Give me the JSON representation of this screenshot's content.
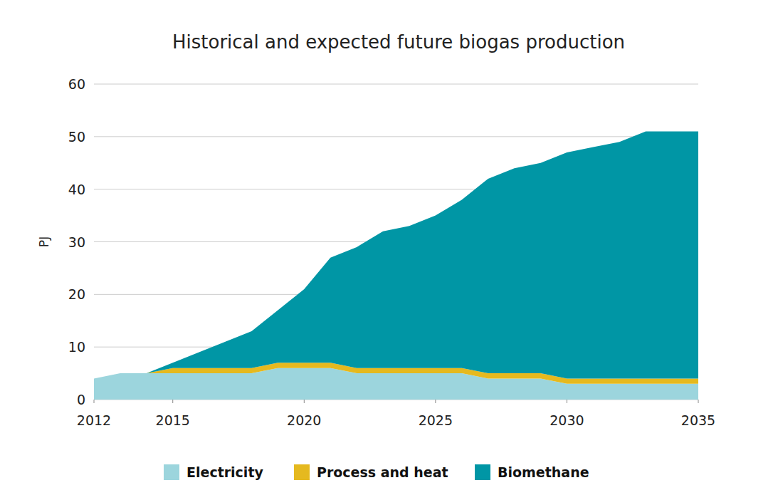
{
  "chart_data": {
    "type": "area",
    "title": "Historical and expected future biogas production",
    "y_label": "PJ",
    "x": [
      2012,
      2013,
      2014,
      2015,
      2016,
      2017,
      2018,
      2019,
      2020,
      2021,
      2022,
      2023,
      2024,
      2025,
      2026,
      2027,
      2028,
      2029,
      2030,
      2031,
      2032,
      2033,
      2034,
      2035
    ],
    "series": [
      {
        "name": "Electricity",
        "color": "#9cd5dd",
        "values": [
          4,
          5,
          5,
          5,
          5,
          5,
          5,
          6,
          6,
          6,
          5,
          5,
          5,
          5,
          5,
          4,
          4,
          4,
          3,
          3,
          3,
          3,
          3,
          3
        ]
      },
      {
        "name": "Process and heat",
        "color": "#e5b91f",
        "values": [
          0,
          0,
          0,
          1,
          1,
          1,
          1,
          1,
          1,
          1,
          1,
          1,
          1,
          1,
          1,
          1,
          1,
          1,
          1,
          1,
          1,
          1,
          1,
          1
        ]
      },
      {
        "name": "Biomethane",
        "color": "#0096a5",
        "values": [
          0,
          0,
          0,
          1,
          3,
          5,
          7,
          10,
          14,
          20,
          23,
          26,
          27,
          29,
          32,
          37,
          39,
          40,
          43,
          44,
          45,
          47,
          47,
          47
        ]
      }
    ],
    "stacked": true,
    "xlim": [
      2012,
      2035
    ],
    "xticks": [
      2012,
      2015,
      2020,
      2025,
      2030,
      2035
    ],
    "ylim": [
      0,
      60
    ],
    "yticks": [
      0,
      10,
      20,
      30,
      40,
      50,
      60
    ],
    "grid": true,
    "legend": "bottom"
  }
}
